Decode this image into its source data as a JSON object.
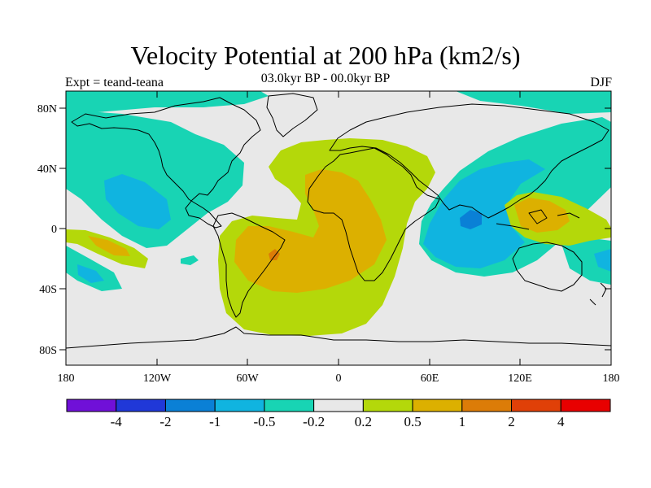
{
  "title": "Velocity Potential at 200 hPa (km2/s)",
  "subtitle": "03.0kyr BP - 00.0kyr BP",
  "expt_label": "Expt = teand-teana",
  "season_label": "DJF",
  "map": {
    "projection": "cylindrical equidistant",
    "lat_ticks": [
      "80N",
      "40N",
      "0",
      "40S",
      "80S"
    ],
    "lon_ticks": [
      "180",
      "120W",
      "60W",
      "0",
      "60E",
      "120E",
      "180"
    ]
  },
  "colorbar": {
    "labels": [
      "-4",
      "-2",
      "-1",
      "-0.5",
      "-0.2",
      "0.2",
      "0.5",
      "1",
      "2",
      "4"
    ],
    "colors": [
      "#7010d8",
      "#2038d8",
      "#0a80d6",
      "#10b4e0",
      "#18d4b4",
      "#e8e8e8",
      "#b4d80a",
      "#dcb000",
      "#dc7c08",
      "#e04008",
      "#e80000"
    ]
  },
  "colors": {
    "background": "#e8e8e8",
    "neg_light": "#18d4b4",
    "neg_mid": "#10b4e0",
    "neg_strong": "#0a80d6",
    "pos_light": "#b4d80a",
    "pos_mid": "#dcb000",
    "pos_strong": "#dc7c08",
    "pos_max": "#e04008"
  }
}
